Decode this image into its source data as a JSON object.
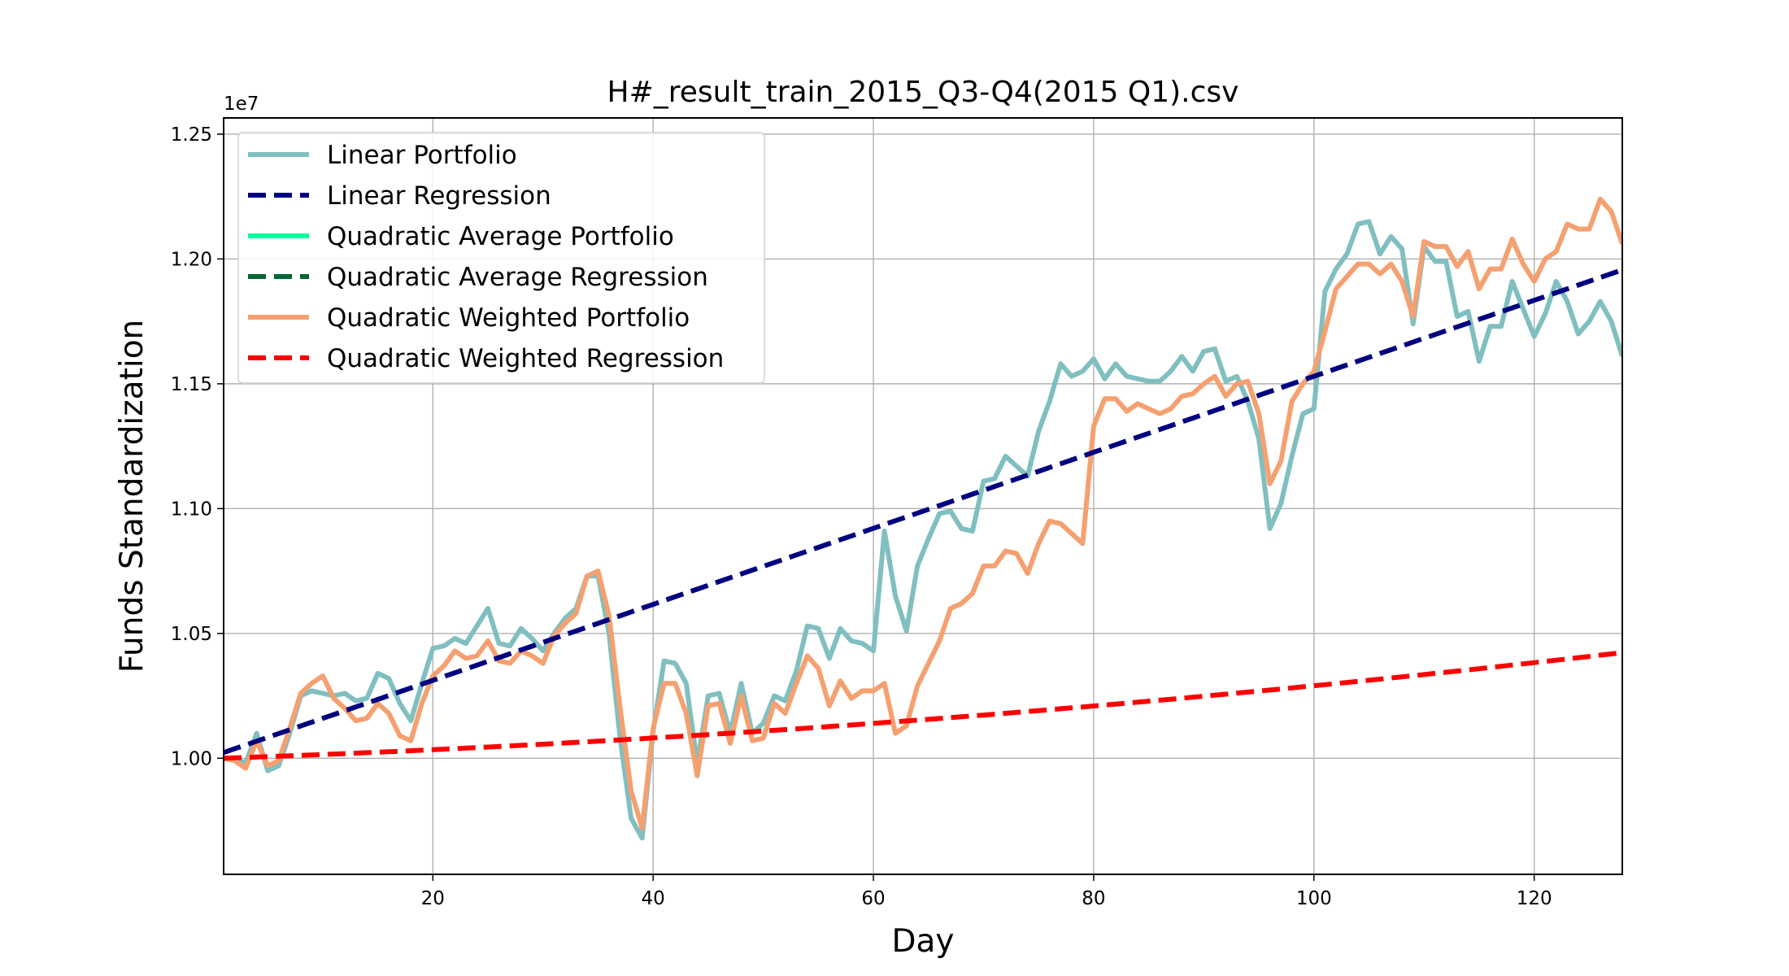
{
  "chart_data": {
    "type": "line",
    "title": "H#_result_train_2015_Q3-Q4(2015 Q1).csv",
    "xlabel": "Day",
    "ylabel": "Funds Standardization",
    "y_offset_label": "1e7",
    "xlim": [
      1,
      128
    ],
    "ylim": [
      0.9535,
      1.2565
    ],
    "x_ticks": [
      20,
      40,
      60,
      80,
      100,
      120
    ],
    "y_ticks": [
      1.0,
      1.05,
      1.1,
      1.15,
      1.2,
      1.25
    ],
    "y_tick_labels": [
      "1.00",
      "1.05",
      "1.10",
      "1.15",
      "1.20",
      "1.25"
    ],
    "grid": true,
    "legend_position": "top-left",
    "series": [
      {
        "name": "Linear Portfolio",
        "color": "#80bfbf",
        "style": "solid",
        "points": [
          [
            1,
            1.0
          ],
          [
            2,
            1.0
          ],
          [
            3,
            0.998
          ],
          [
            4,
            1.01
          ],
          [
            5,
            0.995
          ],
          [
            6,
            0.997
          ],
          [
            7,
            1.01
          ],
          [
            8,
            1.025
          ],
          [
            9,
            1.027
          ],
          [
            10,
            1.026
          ],
          [
            11,
            1.025
          ],
          [
            12,
            1.026
          ],
          [
            13,
            1.023
          ],
          [
            14,
            1.024
          ],
          [
            15,
            1.034
          ],
          [
            16,
            1.032
          ],
          [
            17,
            1.022
          ],
          [
            18,
            1.015
          ],
          [
            19,
            1.03
          ],
          [
            20,
            1.044
          ],
          [
            21,
            1.045
          ],
          [
            22,
            1.048
          ],
          [
            23,
            1.046
          ],
          [
            24,
            1.053
          ],
          [
            25,
            1.06
          ],
          [
            26,
            1.046
          ],
          [
            27,
            1.045
          ],
          [
            28,
            1.052
          ],
          [
            29,
            1.048
          ],
          [
            30,
            1.043
          ],
          [
            31,
            1.05
          ],
          [
            32,
            1.056
          ],
          [
            33,
            1.06
          ],
          [
            34,
            1.073
          ],
          [
            35,
            1.073
          ],
          [
            36,
            1.05
          ],
          [
            37,
            1.008
          ],
          [
            38,
            0.976
          ],
          [
            39,
            0.968
          ],
          [
            40,
            1.011
          ],
          [
            41,
            1.039
          ],
          [
            42,
            1.038
          ],
          [
            43,
            1.03
          ],
          [
            44,
            0.998
          ],
          [
            45,
            1.025
          ],
          [
            46,
            1.026
          ],
          [
            47,
            1.01
          ],
          [
            48,
            1.03
          ],
          [
            49,
            1.01
          ],
          [
            50,
            1.014
          ],
          [
            51,
            1.025
          ],
          [
            52,
            1.023
          ],
          [
            53,
            1.035
          ],
          [
            54,
            1.053
          ],
          [
            55,
            1.052
          ],
          [
            56,
            1.04
          ],
          [
            57,
            1.052
          ],
          [
            58,
            1.047
          ],
          [
            59,
            1.046
          ],
          [
            60,
            1.043
          ],
          [
            61,
            1.091
          ],
          [
            62,
            1.065
          ],
          [
            63,
            1.051
          ],
          [
            64,
            1.077
          ],
          [
            65,
            1.088
          ],
          [
            66,
            1.098
          ],
          [
            67,
            1.099
          ],
          [
            68,
            1.092
          ],
          [
            69,
            1.091
          ],
          [
            70,
            1.111
          ],
          [
            71,
            1.112
          ],
          [
            72,
            1.121
          ],
          [
            73,
            1.117
          ],
          [
            74,
            1.113
          ],
          [
            75,
            1.131
          ],
          [
            76,
            1.143
          ],
          [
            77,
            1.158
          ],
          [
            78,
            1.153
          ],
          [
            79,
            1.155
          ],
          [
            80,
            1.16
          ],
          [
            81,
            1.152
          ],
          [
            82,
            1.158
          ],
          [
            83,
            1.153
          ],
          [
            84,
            1.152
          ],
          [
            85,
            1.151
          ],
          [
            86,
            1.151
          ],
          [
            87,
            1.155
          ],
          [
            88,
            1.161
          ],
          [
            89,
            1.155
          ],
          [
            90,
            1.163
          ],
          [
            91,
            1.164
          ],
          [
            92,
            1.151
          ],
          [
            93,
            1.153
          ],
          [
            94,
            1.143
          ],
          [
            95,
            1.128
          ],
          [
            96,
            1.092
          ],
          [
            97,
            1.102
          ],
          [
            98,
            1.121
          ],
          [
            99,
            1.138
          ],
          [
            100,
            1.14
          ],
          [
            101,
            1.187
          ],
          [
            102,
            1.196
          ],
          [
            103,
            1.202
          ],
          [
            104,
            1.214
          ],
          [
            105,
            1.215
          ],
          [
            106,
            1.202
          ],
          [
            107,
            1.209
          ],
          [
            108,
            1.204
          ],
          [
            109,
            1.174
          ],
          [
            110,
            1.205
          ],
          [
            111,
            1.199
          ],
          [
            112,
            1.199
          ],
          [
            113,
            1.177
          ],
          [
            114,
            1.179
          ],
          [
            115,
            1.159
          ],
          [
            116,
            1.173
          ],
          [
            117,
            1.173
          ],
          [
            118,
            1.191
          ],
          [
            119,
            1.18
          ],
          [
            120,
            1.169
          ],
          [
            121,
            1.178
          ],
          [
            122,
            1.191
          ],
          [
            123,
            1.183
          ],
          [
            124,
            1.17
          ],
          [
            125,
            1.175
          ],
          [
            126,
            1.183
          ],
          [
            127,
            1.175
          ],
          [
            128,
            1.161
          ]
        ]
      },
      {
        "name": "Linear Regression",
        "color": "#000080",
        "style": "dashed",
        "equation": {
          "kind": "linear",
          "a": 1.00075,
          "b": 0.0015225
        }
      },
      {
        "name": "Quadratic Average Portfolio",
        "color": "#00ff9f",
        "style": "solid",
        "points": []
      },
      {
        "name": "Quadratic Average Regression",
        "color": "#006633",
        "style": "dashed",
        "points": []
      },
      {
        "name": "Quadratic Weighted Portfolio",
        "color": "#f5a070",
        "style": "solid",
        "points": [
          [
            1,
            1.0
          ],
          [
            2,
            0.999
          ],
          [
            3,
            0.996
          ],
          [
            4,
            1.007
          ],
          [
            5,
            0.997
          ],
          [
            6,
            0.999
          ],
          [
            7,
            1.012
          ],
          [
            8,
            1.026
          ],
          [
            9,
            1.03
          ],
          [
            10,
            1.033
          ],
          [
            11,
            1.024
          ],
          [
            12,
            1.02
          ],
          [
            13,
            1.015
          ],
          [
            14,
            1.016
          ],
          [
            15,
            1.022
          ],
          [
            16,
            1.018
          ],
          [
            17,
            1.009
          ],
          [
            18,
            1.007
          ],
          [
            19,
            1.022
          ],
          [
            20,
            1.033
          ],
          [
            21,
            1.037
          ],
          [
            22,
            1.043
          ],
          [
            23,
            1.04
          ],
          [
            24,
            1.041
          ],
          [
            25,
            1.047
          ],
          [
            26,
            1.039
          ],
          [
            27,
            1.038
          ],
          [
            28,
            1.043
          ],
          [
            29,
            1.041
          ],
          [
            30,
            1.038
          ],
          [
            31,
            1.049
          ],
          [
            32,
            1.054
          ],
          [
            33,
            1.058
          ],
          [
            34,
            1.073
          ],
          [
            35,
            1.075
          ],
          [
            36,
            1.057
          ],
          [
            37,
            1.02
          ],
          [
            38,
            0.987
          ],
          [
            39,
            0.972
          ],
          [
            40,
            1.012
          ],
          [
            41,
            1.03
          ],
          [
            42,
            1.03
          ],
          [
            43,
            1.018
          ],
          [
            44,
            0.993
          ],
          [
            45,
            1.021
          ],
          [
            46,
            1.022
          ],
          [
            47,
            1.006
          ],
          [
            48,
            1.025
          ],
          [
            49,
            1.007
          ],
          [
            50,
            1.008
          ],
          [
            51,
            1.022
          ],
          [
            52,
            1.018
          ],
          [
            53,
            1.03
          ],
          [
            54,
            1.041
          ],
          [
            55,
            1.036
          ],
          [
            56,
            1.021
          ],
          [
            57,
            1.031
          ],
          [
            58,
            1.024
          ],
          [
            59,
            1.027
          ],
          [
            60,
            1.027
          ],
          [
            61,
            1.03
          ],
          [
            62,
            1.01
          ],
          [
            63,
            1.013
          ],
          [
            64,
            1.029
          ],
          [
            65,
            1.038
          ],
          [
            66,
            1.047
          ],
          [
            67,
            1.06
          ],
          [
            68,
            1.062
          ],
          [
            69,
            1.066
          ],
          [
            70,
            1.077
          ],
          [
            71,
            1.077
          ],
          [
            72,
            1.083
          ],
          [
            73,
            1.082
          ],
          [
            74,
            1.074
          ],
          [
            75,
            1.086
          ],
          [
            76,
            1.095
          ],
          [
            77,
            1.094
          ],
          [
            78,
            1.09
          ],
          [
            79,
            1.086
          ],
          [
            80,
            1.133
          ],
          [
            81,
            1.144
          ],
          [
            82,
            1.144
          ],
          [
            83,
            1.139
          ],
          [
            84,
            1.142
          ],
          [
            85,
            1.14
          ],
          [
            86,
            1.138
          ],
          [
            87,
            1.14
          ],
          [
            88,
            1.145
          ],
          [
            89,
            1.146
          ],
          [
            90,
            1.15
          ],
          [
            91,
            1.153
          ],
          [
            92,
            1.145
          ],
          [
            93,
            1.15
          ],
          [
            94,
            1.151
          ],
          [
            95,
            1.138
          ],
          [
            96,
            1.11
          ],
          [
            97,
            1.119
          ],
          [
            98,
            1.143
          ],
          [
            99,
            1.15
          ],
          [
            100,
            1.155
          ],
          [
            101,
            1.171
          ],
          [
            102,
            1.188
          ],
          [
            103,
            1.193
          ],
          [
            104,
            1.198
          ],
          [
            105,
            1.198
          ],
          [
            106,
            1.194
          ],
          [
            107,
            1.198
          ],
          [
            108,
            1.191
          ],
          [
            109,
            1.177
          ],
          [
            110,
            1.207
          ],
          [
            111,
            1.205
          ],
          [
            112,
            1.205
          ],
          [
            113,
            1.197
          ],
          [
            114,
            1.203
          ],
          [
            115,
            1.188
          ],
          [
            116,
            1.196
          ],
          [
            117,
            1.196
          ],
          [
            118,
            1.208
          ],
          [
            119,
            1.198
          ],
          [
            120,
            1.191
          ],
          [
            121,
            1.2
          ],
          [
            122,
            1.203
          ],
          [
            123,
            1.214
          ],
          [
            124,
            1.212
          ],
          [
            125,
            1.212
          ],
          [
            126,
            1.224
          ],
          [
            127,
            1.219
          ],
          [
            128,
            1.206
          ]
        ]
      },
      {
        "name": "Quadratic Weighted Regression",
        "color": "#ff0000",
        "style": "dashed",
        "equation": {
          "kind": "quadratic",
          "a": 0.99985,
          "b": 0.00015,
          "c": 1.42e-06
        }
      }
    ]
  }
}
